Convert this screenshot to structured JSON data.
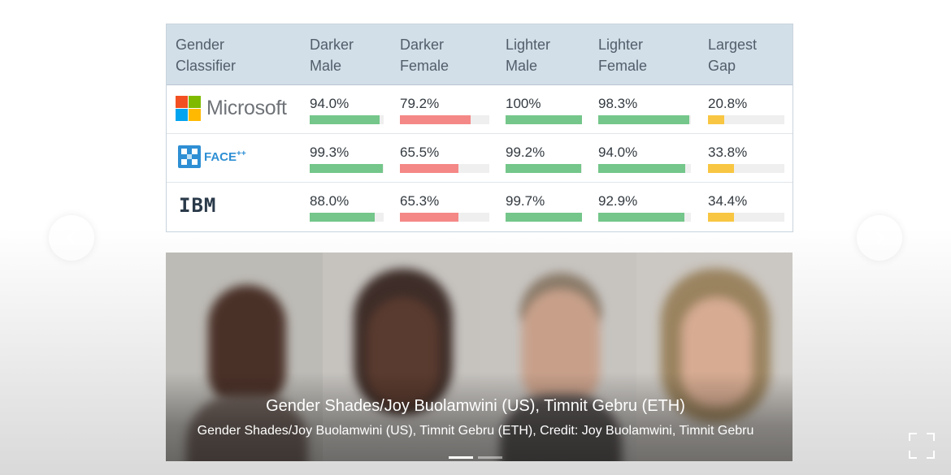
{
  "table": {
    "headers": [
      [
        "Gender",
        "Classifier"
      ],
      [
        "Darker",
        "Male"
      ],
      [
        "Darker",
        "Female"
      ],
      [
        "Lighter",
        "Male"
      ],
      [
        "Lighter",
        "Female"
      ],
      [
        "Largest",
        "Gap"
      ]
    ],
    "rows": [
      {
        "classifier": "Microsoft",
        "logo_icon": "microsoft-logo-icon",
        "values": [
          {
            "label": "94.0%",
            "fraction": 0.94,
            "color": "green"
          },
          {
            "label": "79.2%",
            "fraction": 0.792,
            "color": "red"
          },
          {
            "label": "100%",
            "fraction": 1.0,
            "color": "green"
          },
          {
            "label": "98.3%",
            "fraction": 0.983,
            "color": "green"
          },
          {
            "label": "20.8%",
            "fraction": 0.208,
            "color": "yellow"
          }
        ]
      },
      {
        "classifier": "FACE",
        "classifier_sup": "++",
        "logo_icon": "face-plus-plus-logo-icon",
        "values": [
          {
            "label": "99.3%",
            "fraction": 0.993,
            "color": "green"
          },
          {
            "label": "65.5%",
            "fraction": 0.655,
            "color": "red"
          },
          {
            "label": "99.2%",
            "fraction": 0.992,
            "color": "green"
          },
          {
            "label": "94.0%",
            "fraction": 0.94,
            "color": "green"
          },
          {
            "label": "33.8%",
            "fraction": 0.338,
            "color": "yellow"
          }
        ]
      },
      {
        "classifier": "IBM",
        "logo_icon": "ibm-logo-icon",
        "values": [
          {
            "label": "88.0%",
            "fraction": 0.88,
            "color": "green"
          },
          {
            "label": "65.3%",
            "fraction": 0.653,
            "color": "red"
          },
          {
            "label": "99.7%",
            "fraction": 0.997,
            "color": "green"
          },
          {
            "label": "92.9%",
            "fraction": 0.929,
            "color": "green"
          },
          {
            "label": "34.4%",
            "fraction": 0.344,
            "color": "yellow"
          }
        ]
      }
    ]
  },
  "colors": {
    "green": "#74c68a",
    "red": "#f48886",
    "yellow": "#f8c642",
    "header_bg": "#d2dfe9"
  },
  "caption": {
    "title": "Gender Shades/Joy Buolamwini (US), Timnit Gebru (ETH)",
    "subtitle": "Gender Shades/Joy Buolamwini (US), Timnit Gebru (ETH), Credit: Joy Buolamwini, Timnit Gebru"
  },
  "carousel": {
    "slide_count": 2,
    "active_index": 0,
    "prev_icon": "chevron-left-icon",
    "next_icon": "chevron-right-icon",
    "fullscreen_icon": "fullscreen-icon"
  }
}
